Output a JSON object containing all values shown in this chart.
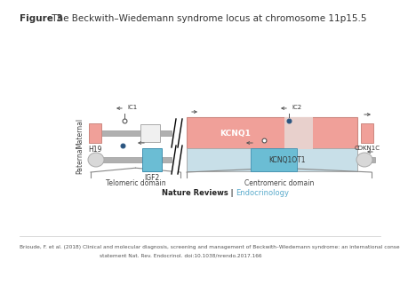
{
  "title_bold": "Figure 3",
  "title_normal": " The Beckwith–Wiedemann syndrome locus at chromosome 11p15.5",
  "background_color": "#ffffff",
  "salmon_color": "#f0a099",
  "blue_color": "#6bbdd4",
  "light_blue_bar": "#c8dfe8",
  "gray_line": "#b0b0b0",
  "gray_box": "#d8d8d8",
  "white_box": "#f0f0f0",
  "dark_dot": "#2a5580",
  "arrow_color": "#555555",
  "text_color": "#333333",
  "label_color": "#555555",
  "endocrinology_color": "#5aabcc",
  "nature_reviews_text": "Nature Reviews | ",
  "endocrinology_text": "Endocrinology",
  "citation_line1": "Brioude, F. et al. (2018) Clinical and molecular diagnosis, screening and management of Beckwith–Wiedemann syndrome: an international consensus",
  "citation_line2": "statement Nat. Rev. Endocrinol. doi:10.1038/nrendo.2017.166"
}
